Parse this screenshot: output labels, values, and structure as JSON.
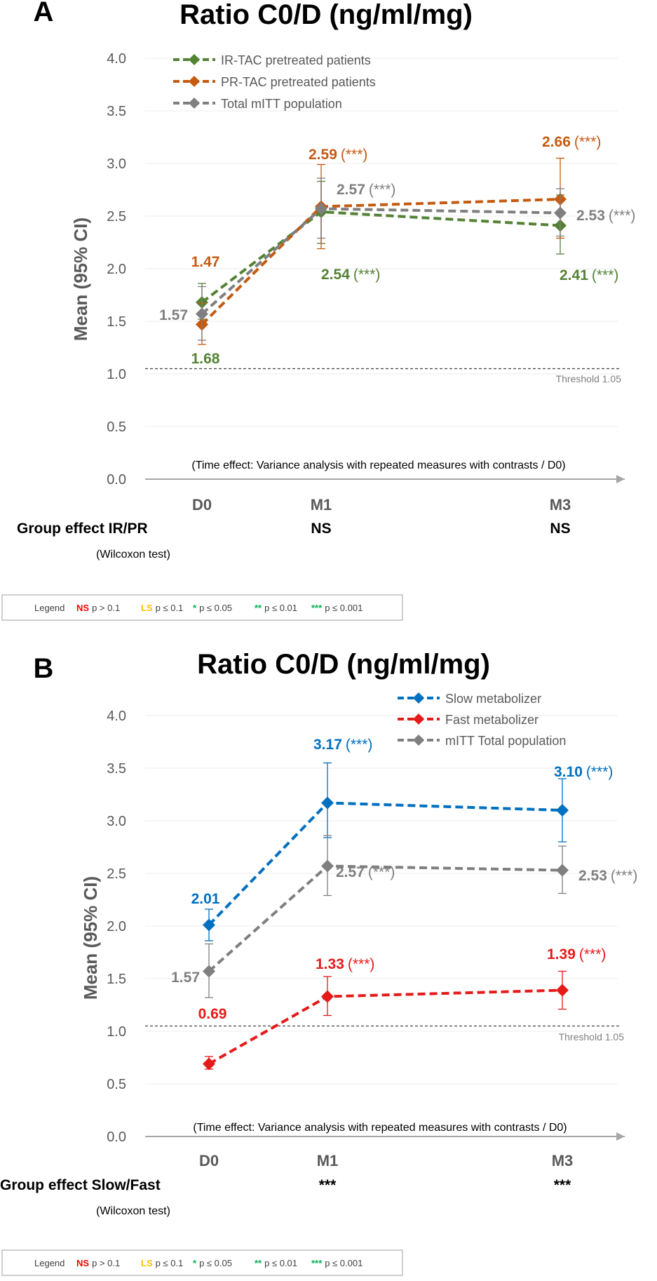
{
  "chart_data": [
    {
      "panel": "A",
      "type": "line",
      "title": "Ratio C0/D (ng/ml/mg)",
      "ylabel": "Mean (95% CI)",
      "xlabel": "",
      "categories": [
        "D0",
        "M1",
        "M3"
      ],
      "ylim": [
        0,
        4.0
      ],
      "yticks": [
        "0.0",
        "0.5",
        "1.0",
        "1.5",
        "2.0",
        "2.5",
        "3.0",
        "3.5",
        "4.0"
      ],
      "threshold": {
        "value": 1.05,
        "label": "Threshold 1.05"
      },
      "legend_position": "top-left",
      "series": [
        {
          "name": "IR-TAC pretreated patients",
          "color": "#548235",
          "values": [
            1.68,
            2.54,
            2.41
          ],
          "ci_low": [
            1.52,
            2.24,
            2.14
          ],
          "ci_high": [
            1.86,
            2.83,
            2.7
          ],
          "labels": [
            "1.68",
            "2.54",
            "2.41"
          ],
          "sig": [
            "",
            "(***)",
            "(***)"
          ]
        },
        {
          "name": "PR-TAC pretreated patients",
          "color": "#C55A11",
          "values": [
            1.47,
            2.59,
            2.66
          ],
          "ci_low": [
            1.28,
            2.19,
            2.29
          ],
          "ci_high": [
            1.67,
            2.99,
            3.05
          ],
          "labels": [
            "1.47",
            "2.59",
            "2.66"
          ],
          "sig": [
            "",
            "(***)",
            "(***)"
          ]
        },
        {
          "name": "Total mITT population",
          "color": "#7F7F7F",
          "values": [
            1.57,
            2.57,
            2.53
          ],
          "ci_low": [
            1.32,
            2.29,
            2.31
          ],
          "ci_high": [
            1.83,
            2.86,
            2.76
          ],
          "labels": [
            "1.57",
            "2.57",
            "2.53"
          ],
          "sig": [
            "",
            "(***)",
            "(***)"
          ]
        }
      ],
      "note": "(Time effect: Variance analysis with repeated measures with contrasts / D0)",
      "group_effect": {
        "label": "Group effect IR/PR",
        "test": "(Wilcoxon test)",
        "values": [
          "",
          "NS",
          "NS"
        ]
      }
    },
    {
      "panel": "B",
      "type": "line",
      "title": "Ratio C0/D (ng/ml/mg)",
      "ylabel": "Mean (95% CI)",
      "xlabel": "",
      "categories": [
        "D0",
        "M1",
        "M3"
      ],
      "ylim": [
        0,
        4.0
      ],
      "yticks": [
        "0.0",
        "0.5",
        "1.0",
        "1.5",
        "2.0",
        "2.5",
        "3.0",
        "3.5",
        "4.0"
      ],
      "threshold": {
        "value": 1.05,
        "label": "Threshold 1.05"
      },
      "legend_position": "top-right",
      "series": [
        {
          "name": "Slow metabolizer",
          "color": "#0070C0",
          "values": [
            2.01,
            3.17,
            3.1
          ],
          "ci_low": [
            1.86,
            2.84,
            2.8
          ],
          "ci_high": [
            2.16,
            3.55,
            3.4
          ],
          "labels": [
            "2.01",
            "3.17",
            "3.10"
          ],
          "sig": [
            "",
            "(***)",
            "(***)"
          ]
        },
        {
          "name": "Fast metabolizer",
          "color": "#E51A1A",
          "values": [
            0.69,
            1.33,
            1.39
          ],
          "ci_low": [
            0.64,
            1.15,
            1.21
          ],
          "ci_high": [
            0.76,
            1.52,
            1.57
          ],
          "labels": [
            "0.69",
            "1.33",
            "1.39"
          ],
          "sig": [
            "",
            "(***)",
            "(***)"
          ]
        },
        {
          "name": "mITT Total population",
          "color": "#7F7F7F",
          "values": [
            1.57,
            2.57,
            2.53
          ],
          "ci_low": [
            1.32,
            2.29,
            2.31
          ],
          "ci_high": [
            1.83,
            2.86,
            2.76
          ],
          "labels": [
            "1.57",
            "2.57",
            "2.53"
          ],
          "sig": [
            "",
            "(***)",
            "(***)"
          ]
        }
      ],
      "note": "(Time effect: Variance analysis with repeated measures with contrasts / D0)",
      "group_effect": {
        "label": "Group effect Slow/Fast",
        "test": "(Wilcoxon test)",
        "values": [
          "",
          "***",
          "***"
        ]
      }
    }
  ],
  "significance_legend": {
    "title": "Legend",
    "items": [
      {
        "sym": "NS",
        "text": "p > 0.1",
        "color": "#FF0000"
      },
      {
        "sym": "LS",
        "text": "p ≤ 0.1",
        "color": "#FFC000"
      },
      {
        "sym": "*",
        "text": "p ≤ 0.05",
        "color": "#00B050"
      },
      {
        "sym": "**",
        "text": "p ≤ 0.01",
        "color": "#00B050"
      },
      {
        "sym": "***",
        "text": "p ≤ 0.001",
        "color": "#00B050"
      }
    ]
  }
}
